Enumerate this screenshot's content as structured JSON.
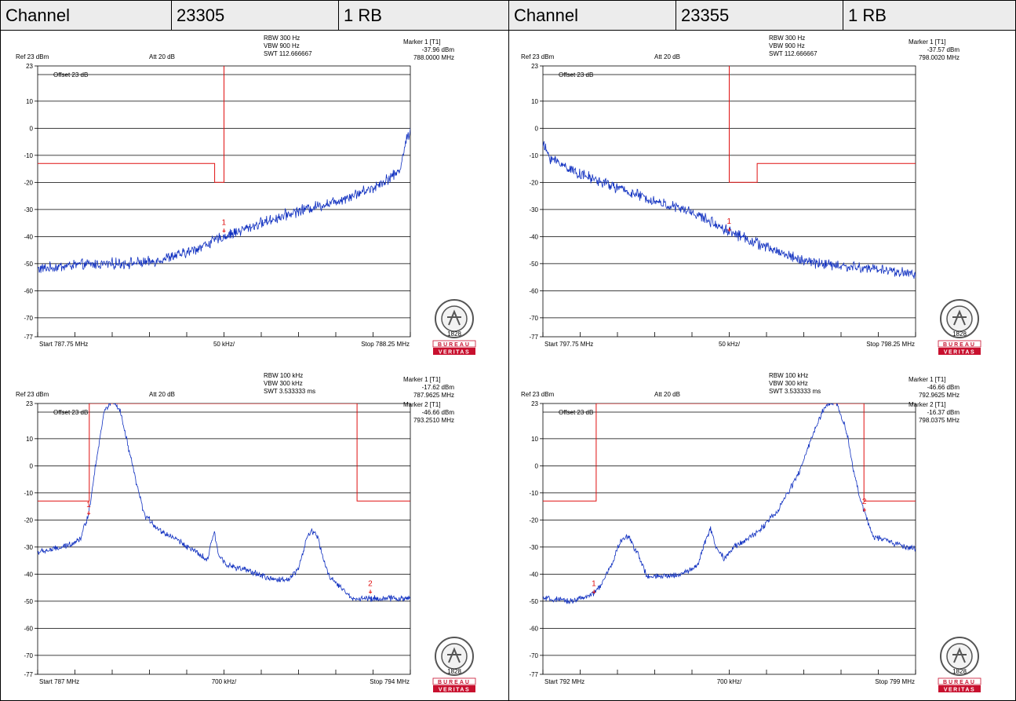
{
  "headers": [
    {
      "label": "Channel",
      "value": "23305",
      "rb": "1 RB"
    },
    {
      "label": "Channel",
      "value": "23355",
      "rb": "1 RB"
    }
  ],
  "colors": {
    "trace": "#1030c0",
    "limit": "#e01010",
    "grid": "#000000",
    "header_bg": "#ececec"
  },
  "logo": {
    "line1": "BUREAU",
    "line2": "VERITAS",
    "year": "1828",
    "icon": "bureau-veritas-logo-icon"
  },
  "chart_data": [
    {
      "type": "line",
      "settings": {
        "rbw": "RBW 300 Hz",
        "vbw": "VBW 900 Hz",
        "swt": "SWT 112.666667",
        "ref": "Ref 23 dBm",
        "att": "Att 20 dB",
        "offset": "Offset 23 dB"
      },
      "markers_text": [
        {
          "title": "Marker 1 [T1]",
          "level": "-37.96 dBm",
          "freq": "788.0000 MHz"
        }
      ],
      "xaxis": {
        "start_label": "Start 787.75 MHz",
        "center_label": "50 kHz/",
        "stop_label": "Stop 788.25 MHz",
        "range": [
          787.75,
          788.25
        ]
      },
      "yaxis": {
        "ticks": [
          "23",
          "10",
          "0",
          "-10",
          "-20",
          "-30",
          "-40",
          "-50",
          "-60",
          "-70",
          "-77"
        ],
        "range": [
          -77,
          23
        ]
      },
      "grid": true,
      "limit_line": [
        [
          787.75,
          -13
        ],
        [
          787.9875,
          -13
        ],
        [
          787.9875,
          -20
        ],
        [
          788.0,
          -20
        ],
        [
          788.0,
          23
        ]
      ],
      "trace_shape": [
        [
          787.75,
          -52
        ],
        [
          787.8,
          -50.5
        ],
        [
          787.85,
          -50
        ],
        [
          787.9,
          -49.5
        ],
        [
          787.95,
          -46
        ],
        [
          788.0,
          -40
        ],
        [
          788.05,
          -35
        ],
        [
          788.1,
          -30.5
        ],
        [
          788.15,
          -27
        ],
        [
          788.2,
          -22
        ],
        [
          788.235,
          -16
        ],
        [
          788.245,
          -4
        ],
        [
          788.25,
          -1
        ]
      ],
      "trace_noise": 1.6,
      "marker_points": [
        {
          "label": "1",
          "x": 788.0,
          "y": -37.96
        }
      ]
    },
    {
      "type": "line",
      "settings": {
        "rbw": "RBW 300 Hz",
        "vbw": "VBW 900 Hz",
        "swt": "SWT 112.666667",
        "ref": "Ref 23 dBm",
        "att": "Att 20 dB",
        "offset": "Offset 23 dB"
      },
      "markers_text": [
        {
          "title": "Marker 1 [T1]",
          "level": "-37.57 dBm",
          "freq": "798.0020 MHz"
        }
      ],
      "xaxis": {
        "start_label": "Start 797.75 MHz",
        "center_label": "50 kHz/",
        "stop_label": "Stop 798.25 MHz",
        "range": [
          797.75,
          798.25
        ]
      },
      "yaxis": {
        "ticks": [
          "23",
          "10",
          "0",
          "-10",
          "-20",
          "-30",
          "-40",
          "-50",
          "-60",
          "-70",
          "-77"
        ],
        "range": [
          -77,
          23
        ]
      },
      "grid": true,
      "limit_line": [
        [
          798.0,
          23
        ],
        [
          798.0,
          -20
        ],
        [
          798.0375,
          -20
        ],
        [
          798.0375,
          -13
        ],
        [
          798.25,
          -13
        ]
      ],
      "trace_shape": [
        [
          797.75,
          -6
        ],
        [
          797.76,
          -11
        ],
        [
          797.8,
          -17
        ],
        [
          797.85,
          -22
        ],
        [
          797.9,
          -27
        ],
        [
          797.95,
          -31
        ],
        [
          798.0,
          -38
        ],
        [
          798.05,
          -44
        ],
        [
          798.1,
          -49
        ],
        [
          798.15,
          -51
        ],
        [
          798.2,
          -52
        ],
        [
          798.25,
          -54
        ]
      ],
      "trace_noise": 1.6,
      "marker_points": [
        {
          "label": "1",
          "x": 798.0,
          "y": -37.57
        }
      ]
    },
    {
      "type": "line",
      "settings": {
        "rbw": "RBW 100 kHz",
        "vbw": "VBW 300 kHz",
        "swt": "SWT 3.533333 ms",
        "ref": "Ref 23 dBm",
        "att": "Att 20 dB",
        "offset": "Offset 23 dB"
      },
      "markers_text": [
        {
          "title": "Marker 1 [T1]",
          "level": "-17.62 dBm",
          "freq": "787.9625 MHz"
        },
        {
          "title": "Marker 2 [T1]",
          "level": "-46.66 dBm",
          "freq": "793.2510 MHz"
        }
      ],
      "xaxis": {
        "start_label": "Start 787 MHz",
        "center_label": "700 kHz/",
        "stop_label": "Stop 794 MHz",
        "range": [
          787,
          794
        ]
      },
      "yaxis": {
        "ticks": [
          "23",
          "10",
          "0",
          "-10",
          "-20",
          "-30",
          "-40",
          "-50",
          "-60",
          "-70",
          "-77"
        ],
        "range": [
          -77,
          23
        ]
      },
      "grid": true,
      "limit_line": [
        [
          787,
          -13
        ],
        [
          787.97,
          -13
        ],
        [
          787.97,
          23
        ],
        [
          793.0,
          23
        ],
        [
          793.0,
          -13
        ],
        [
          794,
          -13
        ]
      ],
      "trace_shape": [
        [
          787.0,
          -32
        ],
        [
          787.5,
          -30
        ],
        [
          787.8,
          -27
        ],
        [
          787.96,
          -17.6
        ],
        [
          788.1,
          2
        ],
        [
          788.25,
          20
        ],
        [
          788.4,
          24
        ],
        [
          788.55,
          20
        ],
        [
          788.7,
          7
        ],
        [
          788.85,
          -6
        ],
        [
          789.0,
          -18
        ],
        [
          789.3,
          -24
        ],
        [
          789.6,
          -27
        ],
        [
          789.9,
          -31
        ],
        [
          790.2,
          -35
        ],
        [
          790.27,
          -27
        ],
        [
          790.32,
          -25
        ],
        [
          790.4,
          -33
        ],
        [
          790.6,
          -37
        ],
        [
          791.0,
          -39
        ],
        [
          791.4,
          -42
        ],
        [
          791.7,
          -42
        ],
        [
          791.9,
          -38
        ],
        [
          792.05,
          -27
        ],
        [
          792.15,
          -24
        ],
        [
          792.25,
          -26
        ],
        [
          792.45,
          -40
        ],
        [
          792.7,
          -45
        ],
        [
          792.9,
          -49
        ],
        [
          793.25,
          -49
        ],
        [
          794.0,
          -49
        ]
      ],
      "trace_noise": 0.9,
      "marker_points": [
        {
          "label": "1",
          "x": 787.96,
          "y": -17.62
        },
        {
          "label": "2",
          "x": 793.25,
          "y": -46.66
        }
      ]
    },
    {
      "type": "line",
      "settings": {
        "rbw": "RBW 100 kHz",
        "vbw": "VBW 300 kHz",
        "swt": "SWT 3.533333 ms",
        "ref": "Ref 23 dBm",
        "att": "Att 20 dB",
        "offset": "Offset 23 dB"
      },
      "markers_text": [
        {
          "title": "Marker 1 [T1]",
          "level": "-46.66 dBm",
          "freq": "792.9625 MHz"
        },
        {
          "title": "Marker 2 [T1]",
          "level": "-16.37 dBm",
          "freq": "798.0375 MHz"
        }
      ],
      "xaxis": {
        "start_label": "Start 792 MHz",
        "center_label": "700 kHz/",
        "stop_label": "Stop 799 MHz",
        "range": [
          792,
          799
        ]
      },
      "yaxis": {
        "ticks": [
          "23",
          "10",
          "0",
          "-10",
          "-20",
          "-30",
          "-40",
          "-50",
          "-60",
          "-70",
          "-77"
        ],
        "range": [
          -77,
          23
        ]
      },
      "grid": true,
      "limit_line": [
        [
          792,
          -13
        ],
        [
          793.0,
          -13
        ],
        [
          793.0,
          23
        ],
        [
          798.03,
          23
        ],
        [
          798.03,
          -13
        ],
        [
          799,
          -13
        ]
      ],
      "trace_shape": [
        [
          792.0,
          -49
        ],
        [
          792.5,
          -50
        ],
        [
          792.9,
          -48
        ],
        [
          793.1,
          -44
        ],
        [
          793.3,
          -36
        ],
        [
          793.45,
          -28
        ],
        [
          793.6,
          -26
        ],
        [
          793.8,
          -33
        ],
        [
          793.95,
          -41
        ],
        [
          794.2,
          -41
        ],
        [
          794.6,
          -40
        ],
        [
          794.9,
          -37
        ],
        [
          795.05,
          -28
        ],
        [
          795.15,
          -23
        ],
        [
          795.25,
          -30
        ],
        [
          795.4,
          -34
        ],
        [
          795.6,
          -30
        ],
        [
          796.0,
          -25
        ],
        [
          796.4,
          -17
        ],
        [
          796.8,
          -3
        ],
        [
          797.1,
          13
        ],
        [
          797.3,
          22
        ],
        [
          797.5,
          24
        ],
        [
          797.7,
          13
        ],
        [
          797.85,
          -3
        ],
        [
          798.0,
          -15
        ],
        [
          798.2,
          -26
        ],
        [
          798.5,
          -28
        ],
        [
          799.0,
          -31
        ]
      ],
      "trace_noise": 0.9,
      "marker_points": [
        {
          "label": "1",
          "x": 792.96,
          "y": -46.66
        },
        {
          "label": "2",
          "x": 798.04,
          "y": -16.37
        }
      ]
    }
  ]
}
